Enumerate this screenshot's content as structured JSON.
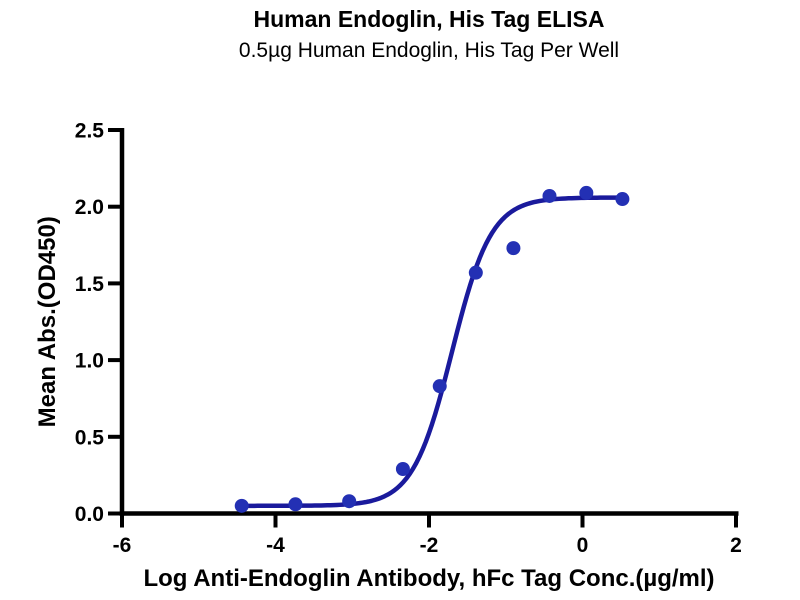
{
  "chart_data": {
    "type": "scatter",
    "title": "Human Endoglin, His Tag ELISA",
    "subtitle": "0.5µg Human Endoglin, His Tag Per Well",
    "xlabel": "Log  Anti-Endoglin Antibody, hFc Tag Conc.(µg/ml)",
    "ylabel": "Mean Abs.(OD450)",
    "xlim": [
      -6,
      2
    ],
    "ylim": [
      0,
      2.5
    ],
    "x_ticks": {
      "values": [
        -6,
        -4,
        -2,
        0,
        2
      ],
      "labels": [
        "-6",
        "-4",
        "-2",
        "0",
        "2"
      ]
    },
    "y_ticks": {
      "values": [
        0,
        0.5,
        1,
        1.5,
        2,
        2.5
      ],
      "labels": [
        "0.0",
        "0.5",
        "1.0",
        "1.5",
        "2.0",
        "2.5"
      ]
    },
    "grid": false,
    "legend_position": "none",
    "colors": {
      "axis": "#000000",
      "text": "#000000",
      "curve": "#1a1a9c",
      "marker": "#2330b4",
      "background": "#ffffff"
    },
    "series": [
      {
        "name": "Anti-Endoglin Antibody, hFc Tag",
        "points": [
          {
            "x": -4.44,
            "y": 0.05
          },
          {
            "x": -3.74,
            "y": 0.06
          },
          {
            "x": -3.04,
            "y": 0.08
          },
          {
            "x": -2.34,
            "y": 0.29
          },
          {
            "x": -1.86,
            "y": 0.83
          },
          {
            "x": -1.39,
            "y": 1.57
          },
          {
            "x": -0.9,
            "y": 1.73
          },
          {
            "x": -0.43,
            "y": 2.07
          },
          {
            "x": 0.05,
            "y": 2.09
          },
          {
            "x": 0.52,
            "y": 2.05
          }
        ],
        "fit_4pl": {
          "bottom": 0.05,
          "top": 2.06,
          "log_ec50": -1.7,
          "hill": 1.7,
          "x_start": -4.44,
          "x_end": 0.52
        }
      }
    ]
  }
}
